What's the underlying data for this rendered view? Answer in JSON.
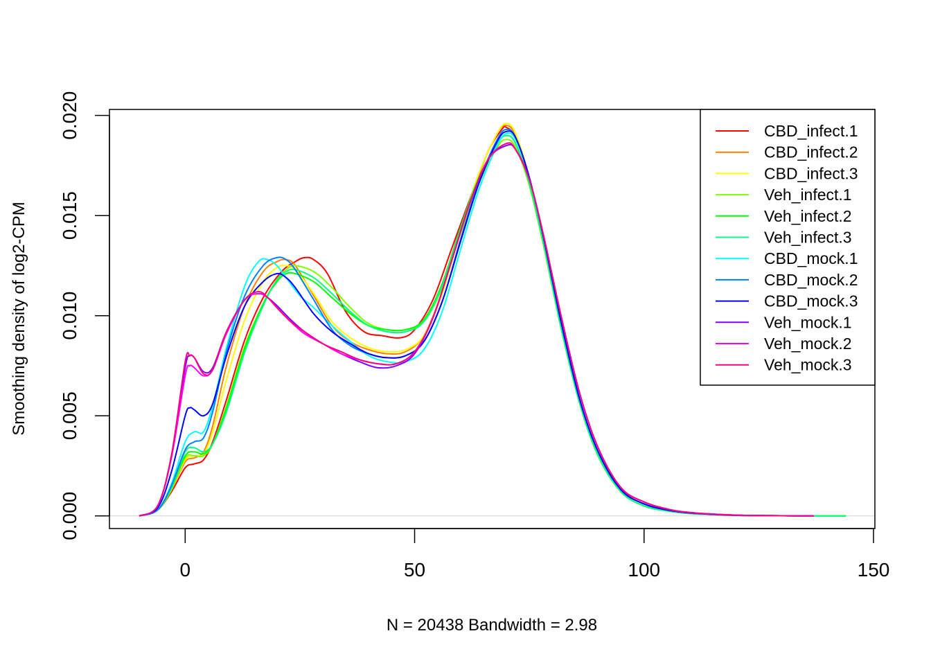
{
  "chart_data": {
    "type": "line",
    "title": "",
    "xlabel": "N = 20438   Bandwidth = 2.98",
    "ylabel": "Smoothing density of log2-CPM",
    "xlim": [
      -16.5,
      150.3
    ],
    "ylim": [
      -0.00063,
      0.0203
    ],
    "x_ticks": [
      0,
      50,
      100,
      150
    ],
    "x_tick_labels": [
      "0",
      "50",
      "100",
      "150"
    ],
    "y_ticks": [
      0.0,
      0.005,
      0.01,
      0.015,
      0.02
    ],
    "y_tick_labels": [
      "0.000",
      "0.005",
      "0.010",
      "0.015",
      "0.020"
    ],
    "grid": false,
    "legend_position": "top-right",
    "series": [
      {
        "name": "CBD_infect.1",
        "color": "#FF0000",
        "x": [
          -10,
          -6,
          -3,
          0,
          2,
          4,
          6,
          9,
          13,
          17,
          21,
          24,
          26,
          28,
          31,
          35,
          39,
          43,
          47,
          50,
          54,
          58,
          62,
          66,
          69,
          70,
          72,
          75,
          78,
          82,
          86,
          90,
          95,
          100,
          105,
          110,
          115,
          120,
          130,
          137
        ],
        "y": [
          0,
          0.0003,
          0.0012,
          0.0024,
          0.0026,
          0.0028,
          0.0037,
          0.0058,
          0.0088,
          0.0109,
          0.0122,
          0.0127,
          0.0129,
          0.0128,
          0.0121,
          0.0102,
          0.0092,
          0.009,
          0.0089,
          0.0093,
          0.0108,
          0.0133,
          0.0158,
          0.0182,
          0.0193,
          0.0194,
          0.0189,
          0.0168,
          0.0138,
          0.0094,
          0.0057,
          0.0031,
          0.0013,
          0.0006,
          0.0003,
          0.00015,
          7e-05,
          3e-05,
          1e-05,
          0
        ]
      },
      {
        "name": "CBD_infect.2",
        "color": "#FF8000",
        "x": [
          -10,
          -6,
          -3,
          0,
          2,
          4,
          6,
          9,
          13,
          17,
          20,
          22,
          24,
          28,
          32,
          36,
          40,
          44,
          48,
          52,
          56,
          60,
          64,
          68,
          70,
          72,
          75,
          78,
          82,
          86,
          90,
          95,
          100,
          105,
          110,
          120,
          130,
          137
        ],
        "y": [
          0,
          0.0003,
          0.0013,
          0.0027,
          0.0029,
          0.0032,
          0.0045,
          0.0075,
          0.0105,
          0.0122,
          0.0127,
          0.0128,
          0.0125,
          0.011,
          0.0095,
          0.0087,
          0.0083,
          0.0081,
          0.0082,
          0.009,
          0.0112,
          0.0143,
          0.0171,
          0.0191,
          0.0195,
          0.019,
          0.0168,
          0.0138,
          0.0094,
          0.0057,
          0.0031,
          0.0013,
          0.0006,
          0.0003,
          0.00015,
          3e-05,
          1e-05,
          0
        ]
      },
      {
        "name": "CBD_infect.3",
        "color": "#FFFF00",
        "x": [
          -10,
          -6,
          -3,
          0,
          2,
          4,
          6,
          9,
          13,
          17,
          20,
          22,
          24,
          28,
          32,
          36,
          40,
          44,
          48,
          52,
          56,
          60,
          64,
          68,
          70,
          72,
          75,
          78,
          82,
          86,
          90,
          95,
          100,
          105,
          110,
          120,
          130,
          137
        ],
        "y": [
          0,
          0.0003,
          0.0013,
          0.0028,
          0.003,
          0.0031,
          0.0042,
          0.0068,
          0.0098,
          0.0117,
          0.0124,
          0.0125,
          0.0123,
          0.0111,
          0.0097,
          0.0089,
          0.0084,
          0.0082,
          0.0083,
          0.009,
          0.0111,
          0.0142,
          0.0171,
          0.0191,
          0.0196,
          0.0191,
          0.0169,
          0.0138,
          0.0094,
          0.0057,
          0.0031,
          0.0013,
          0.0006,
          0.0003,
          0.00015,
          3e-05,
          1e-05,
          0
        ]
      },
      {
        "name": "Veh_infect.1",
        "color": "#80FF00",
        "x": [
          -10,
          -6,
          -3,
          0,
          2,
          4,
          6,
          9,
          13,
          17,
          20,
          22,
          24,
          28,
          32,
          36,
          40,
          44,
          48,
          52,
          56,
          60,
          64,
          68,
          70,
          72,
          75,
          78,
          82,
          86,
          90,
          95,
          100,
          105,
          110,
          120,
          130,
          140,
          144
        ],
        "y": [
          0,
          0.0003,
          0.0013,
          0.0029,
          0.003,
          0.003,
          0.0036,
          0.0055,
          0.0085,
          0.0106,
          0.0118,
          0.0123,
          0.0125,
          0.0122,
          0.0114,
          0.0104,
          0.0096,
          0.0093,
          0.0093,
          0.0097,
          0.0114,
          0.0141,
          0.0166,
          0.0184,
          0.0188,
          0.0184,
          0.0165,
          0.0136,
          0.0093,
          0.0056,
          0.003,
          0.0012,
          0.0005,
          0.00025,
          0.00012,
          3e-05,
          1e-05,
          0,
          0
        ]
      },
      {
        "name": "Veh_infect.2",
        "color": "#00FF00",
        "x": [
          -10,
          -6,
          -3,
          0,
          2,
          4,
          6,
          9,
          13,
          17,
          20,
          22,
          24,
          28,
          32,
          36,
          40,
          44,
          48,
          52,
          56,
          60,
          64,
          68,
          70,
          72,
          75,
          78,
          82,
          86,
          90,
          95,
          100,
          105,
          110,
          120,
          130,
          140,
          144
        ],
        "y": [
          0,
          0.0003,
          0.0014,
          0.003,
          0.0032,
          0.0031,
          0.0036,
          0.0054,
          0.0084,
          0.0106,
          0.0117,
          0.0121,
          0.0121,
          0.0117,
          0.0109,
          0.0101,
          0.0095,
          0.0093,
          0.0093,
          0.0098,
          0.0116,
          0.0144,
          0.0169,
          0.0186,
          0.019,
          0.0186,
          0.0166,
          0.0137,
          0.0093,
          0.0056,
          0.003,
          0.0012,
          0.0005,
          0.00025,
          0.00012,
          3e-05,
          1e-05,
          0,
          0
        ]
      },
      {
        "name": "Veh_infect.3",
        "color": "#00FF80",
        "x": [
          -10,
          -6,
          -3,
          0,
          2,
          4,
          6,
          9,
          13,
          17,
          20,
          22,
          24,
          28,
          32,
          36,
          40,
          44,
          48,
          52,
          56,
          60,
          64,
          68,
          70,
          72,
          75,
          78,
          82,
          86,
          90,
          95,
          100,
          105,
          110,
          120,
          130,
          140,
          144
        ],
        "y": [
          0,
          0.0003,
          0.0014,
          0.0032,
          0.0034,
          0.0032,
          0.0036,
          0.0052,
          0.0082,
          0.0105,
          0.0118,
          0.0122,
          0.0123,
          0.0119,
          0.0111,
          0.0102,
          0.0095,
          0.0092,
          0.0092,
          0.0097,
          0.0115,
          0.0143,
          0.0168,
          0.0186,
          0.019,
          0.0186,
          0.0166,
          0.0137,
          0.0093,
          0.0056,
          0.003,
          0.0012,
          0.0005,
          0.00025,
          0.00012,
          3e-05,
          1e-05,
          0,
          0
        ]
      },
      {
        "name": "CBD_mock.1",
        "color": "#00FFFF",
        "x": [
          -10,
          -6,
          -3,
          0,
          2,
          4,
          6,
          9,
          13,
          16,
          18,
          20,
          22,
          25,
          28,
          32,
          36,
          40,
          44,
          48,
          52,
          56,
          60,
          64,
          68,
          70,
          72,
          75,
          78,
          82,
          86,
          90,
          95,
          100,
          105,
          110,
          120,
          130,
          137
        ],
        "y": [
          0,
          0.0003,
          0.0016,
          0.0037,
          0.0042,
          0.0042,
          0.0055,
          0.0084,
          0.0115,
          0.0127,
          0.0128,
          0.0125,
          0.0119,
          0.011,
          0.0104,
          0.0095,
          0.0087,
          0.008,
          0.0077,
          0.0077,
          0.0083,
          0.0102,
          0.0133,
          0.0163,
          0.0185,
          0.0191,
          0.0188,
          0.0169,
          0.014,
          0.0096,
          0.0058,
          0.0032,
          0.0013,
          0.0006,
          0.0003,
          0.00015,
          3e-05,
          1e-05,
          0
        ]
      },
      {
        "name": "CBD_mock.2",
        "color": "#0080FF",
        "x": [
          -10,
          -6,
          -3,
          0,
          2,
          4,
          6,
          9,
          13,
          17,
          20,
          22,
          24,
          28,
          32,
          36,
          40,
          44,
          48,
          52,
          56,
          60,
          64,
          68,
          70,
          72,
          75,
          78,
          82,
          86,
          90,
          95,
          100,
          105,
          110,
          120,
          130,
          137
        ],
        "y": [
          0,
          0.0003,
          0.0015,
          0.0033,
          0.0037,
          0.0039,
          0.0052,
          0.0082,
          0.011,
          0.0125,
          0.0129,
          0.0128,
          0.0123,
          0.0108,
          0.0093,
          0.0085,
          0.0081,
          0.0079,
          0.008,
          0.0087,
          0.0107,
          0.0138,
          0.0167,
          0.0188,
          0.0193,
          0.0189,
          0.0169,
          0.014,
          0.0096,
          0.0058,
          0.0032,
          0.0013,
          0.0006,
          0.0003,
          0.00015,
          3e-05,
          1e-05,
          0
        ]
      },
      {
        "name": "CBD_mock.3",
        "color": "#0000FF",
        "x": [
          -10,
          -6,
          -3,
          0,
          1,
          2,
          4,
          6,
          9,
          13,
          17,
          20,
          22,
          24,
          28,
          32,
          36,
          40,
          44,
          48,
          52,
          56,
          60,
          64,
          68,
          70,
          72,
          75,
          78,
          82,
          86,
          90,
          95,
          100,
          105,
          110,
          120,
          130,
          137
        ],
        "y": [
          0,
          0.0004,
          0.0022,
          0.005,
          0.0054,
          0.0053,
          0.005,
          0.0056,
          0.008,
          0.0105,
          0.0117,
          0.0121,
          0.0119,
          0.0114,
          0.0101,
          0.0092,
          0.0086,
          0.0081,
          0.0079,
          0.008,
          0.0087,
          0.0107,
          0.0137,
          0.0166,
          0.0187,
          0.0192,
          0.0189,
          0.0169,
          0.014,
          0.0096,
          0.0058,
          0.0032,
          0.0013,
          0.0006,
          0.0003,
          0.00015,
          3e-05,
          1e-05,
          0
        ]
      },
      {
        "name": "Veh_mock.1",
        "color": "#8000FF",
        "x": [
          -10,
          -6,
          -3,
          0,
          1,
          2,
          4,
          6,
          9,
          13,
          16,
          18,
          20,
          23,
          26,
          30,
          34,
          38,
          42,
          46,
          50,
          54,
          58,
          62,
          66,
          70,
          72,
          75,
          78,
          82,
          86,
          90,
          95,
          100,
          105,
          110,
          120,
          130,
          137
        ],
        "y": [
          0,
          0.0005,
          0.003,
          0.0074,
          0.008,
          0.0079,
          0.0072,
          0.0074,
          0.0092,
          0.0108,
          0.0111,
          0.0109,
          0.0105,
          0.0098,
          0.0092,
          0.0086,
          0.0081,
          0.0077,
          0.0074,
          0.0075,
          0.0081,
          0.0099,
          0.0127,
          0.0156,
          0.0178,
          0.0185,
          0.0183,
          0.0168,
          0.0141,
          0.0099,
          0.0061,
          0.0034,
          0.0014,
          0.0007,
          0.00035,
          0.00017,
          4e-05,
          1e-05,
          0
        ]
      },
      {
        "name": "Veh_mock.2",
        "color": "#FF00FF",
        "x": [
          -10,
          -6,
          -3,
          0,
          1,
          2,
          4,
          6,
          9,
          13,
          16,
          18,
          20,
          23,
          26,
          30,
          34,
          38,
          42,
          46,
          50,
          54,
          58,
          62,
          66,
          70,
          72,
          75,
          78,
          82,
          86,
          90,
          95,
          100,
          105,
          110,
          120,
          130,
          137
        ],
        "y": [
          0,
          0.0005,
          0.0029,
          0.007,
          0.0075,
          0.0074,
          0.007,
          0.0073,
          0.0091,
          0.0108,
          0.0111,
          0.0109,
          0.0104,
          0.0097,
          0.0091,
          0.0086,
          0.0081,
          0.0078,
          0.0076,
          0.0076,
          0.0082,
          0.0099,
          0.0127,
          0.0156,
          0.0178,
          0.0186,
          0.0183,
          0.0168,
          0.0141,
          0.0099,
          0.0061,
          0.0034,
          0.0014,
          0.0007,
          0.00035,
          0.00017,
          4e-05,
          1e-05,
          0
        ]
      },
      {
        "name": "Veh_mock.3",
        "color": "#FF0080",
        "x": [
          -10,
          -6,
          -3,
          0,
          1,
          2,
          4,
          6,
          9,
          13,
          16,
          18,
          20,
          23,
          26,
          30,
          34,
          38,
          42,
          46,
          50,
          54,
          58,
          62,
          66,
          70,
          72,
          75,
          78,
          82,
          86,
          90,
          95,
          100,
          105,
          110,
          120,
          130,
          137
        ],
        "y": [
          0,
          0.0005,
          0.003,
          0.0077,
          0.008,
          0.0079,
          0.0071,
          0.0073,
          0.0092,
          0.0108,
          0.0112,
          0.0109,
          0.0104,
          0.0097,
          0.0092,
          0.0086,
          0.0082,
          0.0078,
          0.0076,
          0.0076,
          0.0082,
          0.0099,
          0.0127,
          0.0156,
          0.0178,
          0.0186,
          0.0183,
          0.0168,
          0.0141,
          0.0099,
          0.0061,
          0.0034,
          0.0014,
          0.0007,
          0.00035,
          0.00017,
          4e-05,
          1e-05,
          0
        ]
      }
    ]
  }
}
